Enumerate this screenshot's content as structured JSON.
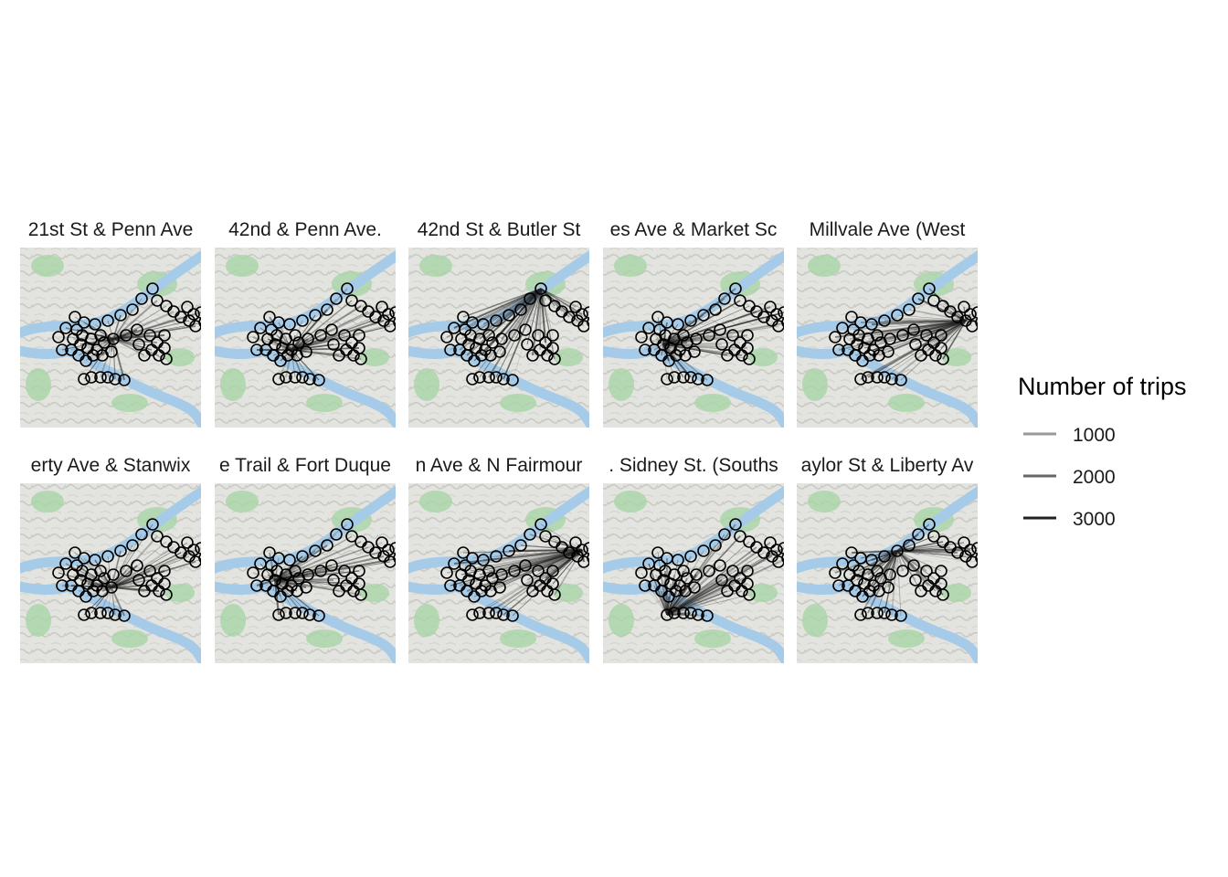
{
  "chart_data": {
    "type": "faceted-map",
    "facets": [
      {
        "label": "21st St & Penn Ave"
      },
      {
        "label": "42nd & Penn Ave."
      },
      {
        "label": "42nd St & Butler St"
      },
      {
        "label": "es Ave & Market Sc"
      },
      {
        "label": "Millvale Ave (West"
      },
      {
        "label": "erty Ave & Stanwix"
      },
      {
        "label": "e Trail & Fort Duque"
      },
      {
        "label": "n Ave & N Fairmour"
      },
      {
        "label": ". Sidney St. (Souths"
      },
      {
        "label": "aylor St & Liberty Av"
      }
    ],
    "legend": {
      "title": "Number of trips",
      "position": "right",
      "entries": [
        {
          "label": "1000",
          "value": 1000,
          "color": "#999999"
        },
        {
          "label": "2000",
          "value": 2000,
          "color": "#666666"
        },
        {
          "label": "3000",
          "value": 3000,
          "color": "#222222"
        }
      ]
    },
    "station_marker": "open-circle",
    "map_colors": {
      "land": "#e3e3df",
      "water": "#a6cbe8",
      "park": "#a8d4a6"
    }
  }
}
